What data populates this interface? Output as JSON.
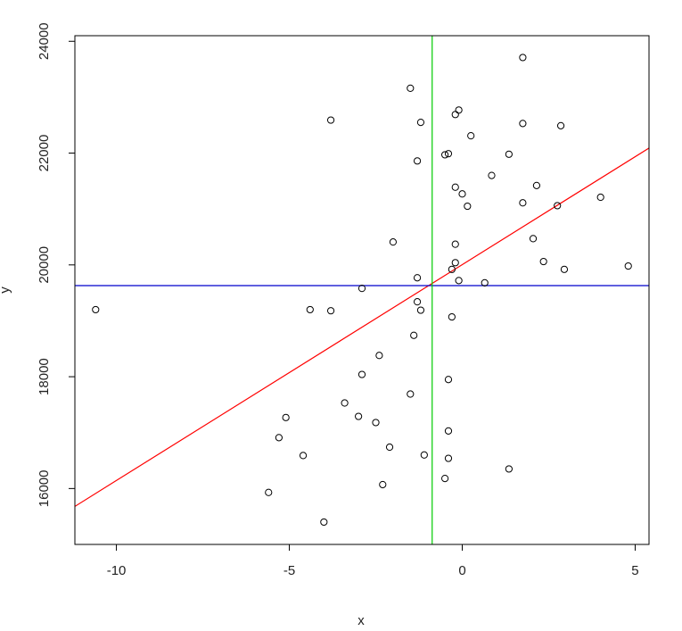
{
  "chart_data": {
    "type": "scatter",
    "title": "",
    "xlabel": "x",
    "ylabel": "y",
    "xlim": [
      -11.2,
      5.4
    ],
    "ylim": [
      15000,
      24100
    ],
    "x_ticks": [
      -10,
      -5,
      0,
      5
    ],
    "x_tick_labels": [
      "-10",
      "-5",
      "0",
      "5"
    ],
    "y_ticks": [
      16000,
      18000,
      20000,
      22000,
      24000
    ],
    "y_tick_labels": [
      "16000",
      "18000",
      "20000",
      "22000",
      "24000"
    ],
    "grid": false,
    "points": [
      [
        -10.6,
        19200
      ],
      [
        -5.6,
        15930
      ],
      [
        -5.3,
        16910
      ],
      [
        -5.1,
        17270
      ],
      [
        -4.6,
        16590
      ],
      [
        -4.4,
        19200
      ],
      [
        -3.8,
        19180
      ],
      [
        -3.8,
        22590
      ],
      [
        -4.0,
        15400
      ],
      [
        -3.4,
        17530
      ],
      [
        -3.0,
        17290
      ],
      [
        -2.9,
        18040
      ],
      [
        -2.9,
        19580
      ],
      [
        -2.5,
        17180
      ],
      [
        -2.4,
        18380
      ],
      [
        -2.3,
        16070
      ],
      [
        -2.1,
        16740
      ],
      [
        -2.0,
        20410
      ],
      [
        -1.5,
        17690
      ],
      [
        -1.5,
        23160
      ],
      [
        -1.4,
        18740
      ],
      [
        -1.3,
        19340
      ],
      [
        -1.3,
        19770
      ],
      [
        -1.3,
        21860
      ],
      [
        -1.2,
        19190
      ],
      [
        -1.2,
        22550
      ],
      [
        -1.1,
        16600
      ],
      [
        -0.5,
        16180
      ],
      [
        -0.5,
        21970
      ],
      [
        -0.4,
        21990
      ],
      [
        -0.4,
        17950
      ],
      [
        -0.4,
        17030
      ],
      [
        -0.4,
        16540
      ],
      [
        -0.3,
        19070
      ],
      [
        -0.3,
        19920
      ],
      [
        -0.2,
        20040
      ],
      [
        -0.2,
        20370
      ],
      [
        -0.2,
        21390
      ],
      [
        -0.2,
        22690
      ],
      [
        -0.1,
        22770
      ],
      [
        -0.1,
        19720
      ],
      [
        0.0,
        21270
      ],
      [
        0.15,
        21050
      ],
      [
        0.25,
        22310
      ],
      [
        0.65,
        19680
      ],
      [
        0.85,
        21600
      ],
      [
        1.35,
        16350
      ],
      [
        1.35,
        21980
      ],
      [
        1.75,
        21110
      ],
      [
        1.75,
        22530
      ],
      [
        1.75,
        23710
      ],
      [
        2.05,
        20470
      ],
      [
        2.15,
        21420
      ],
      [
        2.35,
        20060
      ],
      [
        2.75,
        21060
      ],
      [
        2.85,
        22490
      ],
      [
        2.95,
        19920
      ],
      [
        4.0,
        21210
      ],
      [
        4.8,
        19980
      ]
    ],
    "lines": [
      {
        "kind": "regression",
        "color": "#ff0000",
        "p1": [
          -11.2,
          15680
        ],
        "p2": [
          5.4,
          22090
        ]
      },
      {
        "kind": "horizontal",
        "color": "#0000cc",
        "y": 19630
      },
      {
        "kind": "vertical",
        "color": "#00cc00",
        "x": -0.87
      }
    ]
  }
}
